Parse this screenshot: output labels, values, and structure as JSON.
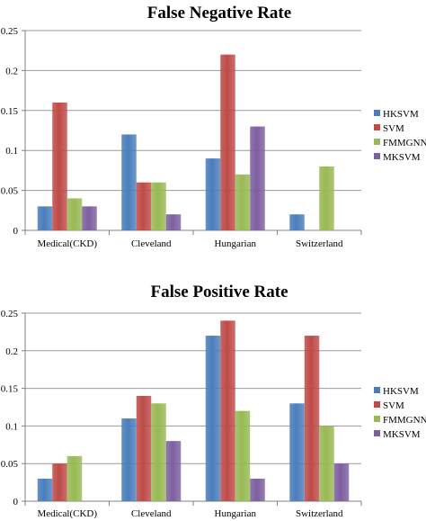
{
  "chart_data": [
    {
      "type": "bar",
      "title": "False Negative Rate",
      "categories": [
        "Medical(CKD)",
        "Cleveland",
        "Hungarian",
        "Switzerland"
      ],
      "ylim": [
        0,
        0.25
      ],
      "yticks": [
        "0",
        "0.05",
        "0.1",
        "0.15",
        "0.2",
        "0.25"
      ],
      "grid": true,
      "legend_position": "right",
      "series": [
        {
          "name": "HKSVM",
          "color": "#4A7EBB",
          "values": [
            0.03,
            0.12,
            0.09,
            0.02
          ]
        },
        {
          "name": "SVM",
          "color": "#BE4B48",
          "values": [
            0.16,
            0.06,
            0.22,
            0
          ]
        },
        {
          "name": "FMMGNN",
          "color": "#98B954",
          "values": [
            0.04,
            0.06,
            0.07,
            0.08
          ]
        },
        {
          "name": "MKSVM",
          "color": "#7D5FA0",
          "values": [
            0.03,
            0.02,
            0.13,
            0
          ]
        }
      ]
    },
    {
      "type": "bar",
      "title": "False Positive Rate",
      "categories": [
        "Medical(CKD)",
        "Cleveland",
        "Hungarian",
        "Switzerland"
      ],
      "ylim": [
        0,
        0.25
      ],
      "yticks": [
        "0",
        "0.05",
        "0.1",
        "0.15",
        "0.2",
        "0.25"
      ],
      "grid": true,
      "legend_position": "right",
      "series": [
        {
          "name": "HKSVM",
          "color": "#4A7EBB",
          "values": [
            0.03,
            0.11,
            0.22,
            0.13
          ]
        },
        {
          "name": "SVM",
          "color": "#BE4B48",
          "values": [
            0.05,
            0.14,
            0.24,
            0.22
          ]
        },
        {
          "name": "FMMGNN",
          "color": "#98B954",
          "values": [
            0.06,
            0.13,
            0.12,
            0.1
          ]
        },
        {
          "name": "MKSVM",
          "color": "#7D5FA0",
          "values": [
            0,
            0.08,
            0.03,
            0.05
          ]
        }
      ]
    }
  ]
}
